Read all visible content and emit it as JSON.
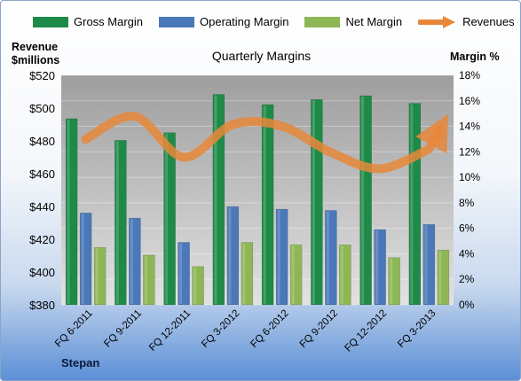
{
  "chart_data": {
    "type": "bar",
    "title": "Quarterly Margins",
    "company": "Stepan",
    "left_axis_label": "Revenue $millions",
    "left_axis_line1": "Revenue",
    "left_axis_line2": "$millions",
    "right_axis_label": "Margin %",
    "categories": [
      "FQ 6-2011",
      "FQ 9-2011",
      "FQ 12-2011",
      "FQ 3-2012",
      "FQ 6-2012",
      "FQ 9-2012",
      "FQ 12-2012",
      "FQ 3-2013"
    ],
    "left_ylim": [
      380,
      520
    ],
    "left_ticks": [
      "$380",
      "$400",
      "$420",
      "$440",
      "$460",
      "$480",
      "$500",
      "$520"
    ],
    "right_ylim": [
      0,
      18
    ],
    "right_ticks": [
      "0%",
      "2%",
      "4%",
      "6%",
      "8%",
      "10%",
      "12%",
      "14%",
      "16%",
      "18%"
    ],
    "series": [
      {
        "name": "Gross Margin",
        "axis": "right",
        "color": "#1e8a47",
        "values": [
          14.6,
          12.9,
          13.5,
          16.5,
          15.7,
          16.1,
          16.4,
          15.8
        ]
      },
      {
        "name": "Operating Margin",
        "axis": "right",
        "color": "#4a78b8",
        "values": [
          7.2,
          6.8,
          4.9,
          7.7,
          7.5,
          7.4,
          5.9,
          6.3
        ]
      },
      {
        "name": "Net Margin",
        "axis": "right",
        "color": "#8db655",
        "values": [
          4.5,
          3.9,
          3.0,
          4.9,
          4.7,
          4.7,
          3.7,
          4.3
        ]
      },
      {
        "name": "Revenues",
        "axis": "left",
        "type": "line",
        "color": "#e8873a",
        "values": [
          481,
          495,
          470,
          490,
          489,
          473,
          463,
          475
        ]
      }
    ],
    "grid": true,
    "legend_position": "top"
  }
}
